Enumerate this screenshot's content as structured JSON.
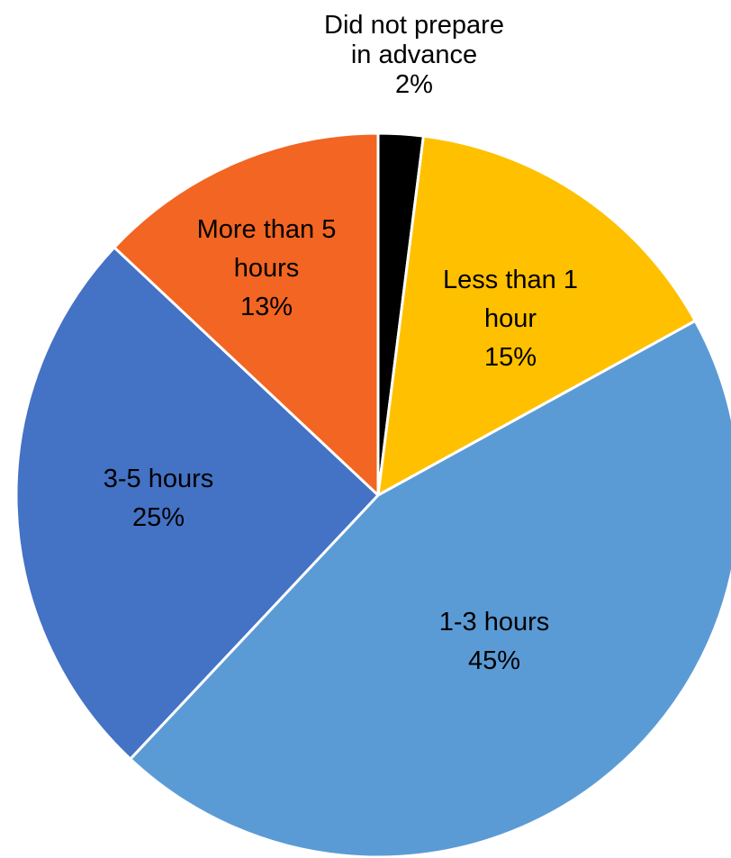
{
  "chart_data": {
    "type": "pie",
    "title": "",
    "slices": [
      {
        "label_lines": [
          "Did not prepare",
          "in advance"
        ],
        "percent_label": "2%",
        "value": 2,
        "color": "#000000"
      },
      {
        "label_lines": [
          "Less than 1",
          "hour"
        ],
        "percent_label": "15%",
        "value": 15,
        "color": "#FFC000"
      },
      {
        "label_lines": [
          "1-3 hours"
        ],
        "percent_label": "45%",
        "value": 45,
        "color": "#5B9BD5"
      },
      {
        "label_lines": [
          "3-5 hours"
        ],
        "percent_label": "25%",
        "value": 25,
        "color": "#4472C4"
      },
      {
        "label_lines": [
          "More than 5",
          "hours"
        ],
        "percent_label": "13%",
        "value": 13,
        "color": "#F26522"
      }
    ],
    "start_angle_deg": 0,
    "direction": "clockwise",
    "legend": "none"
  }
}
